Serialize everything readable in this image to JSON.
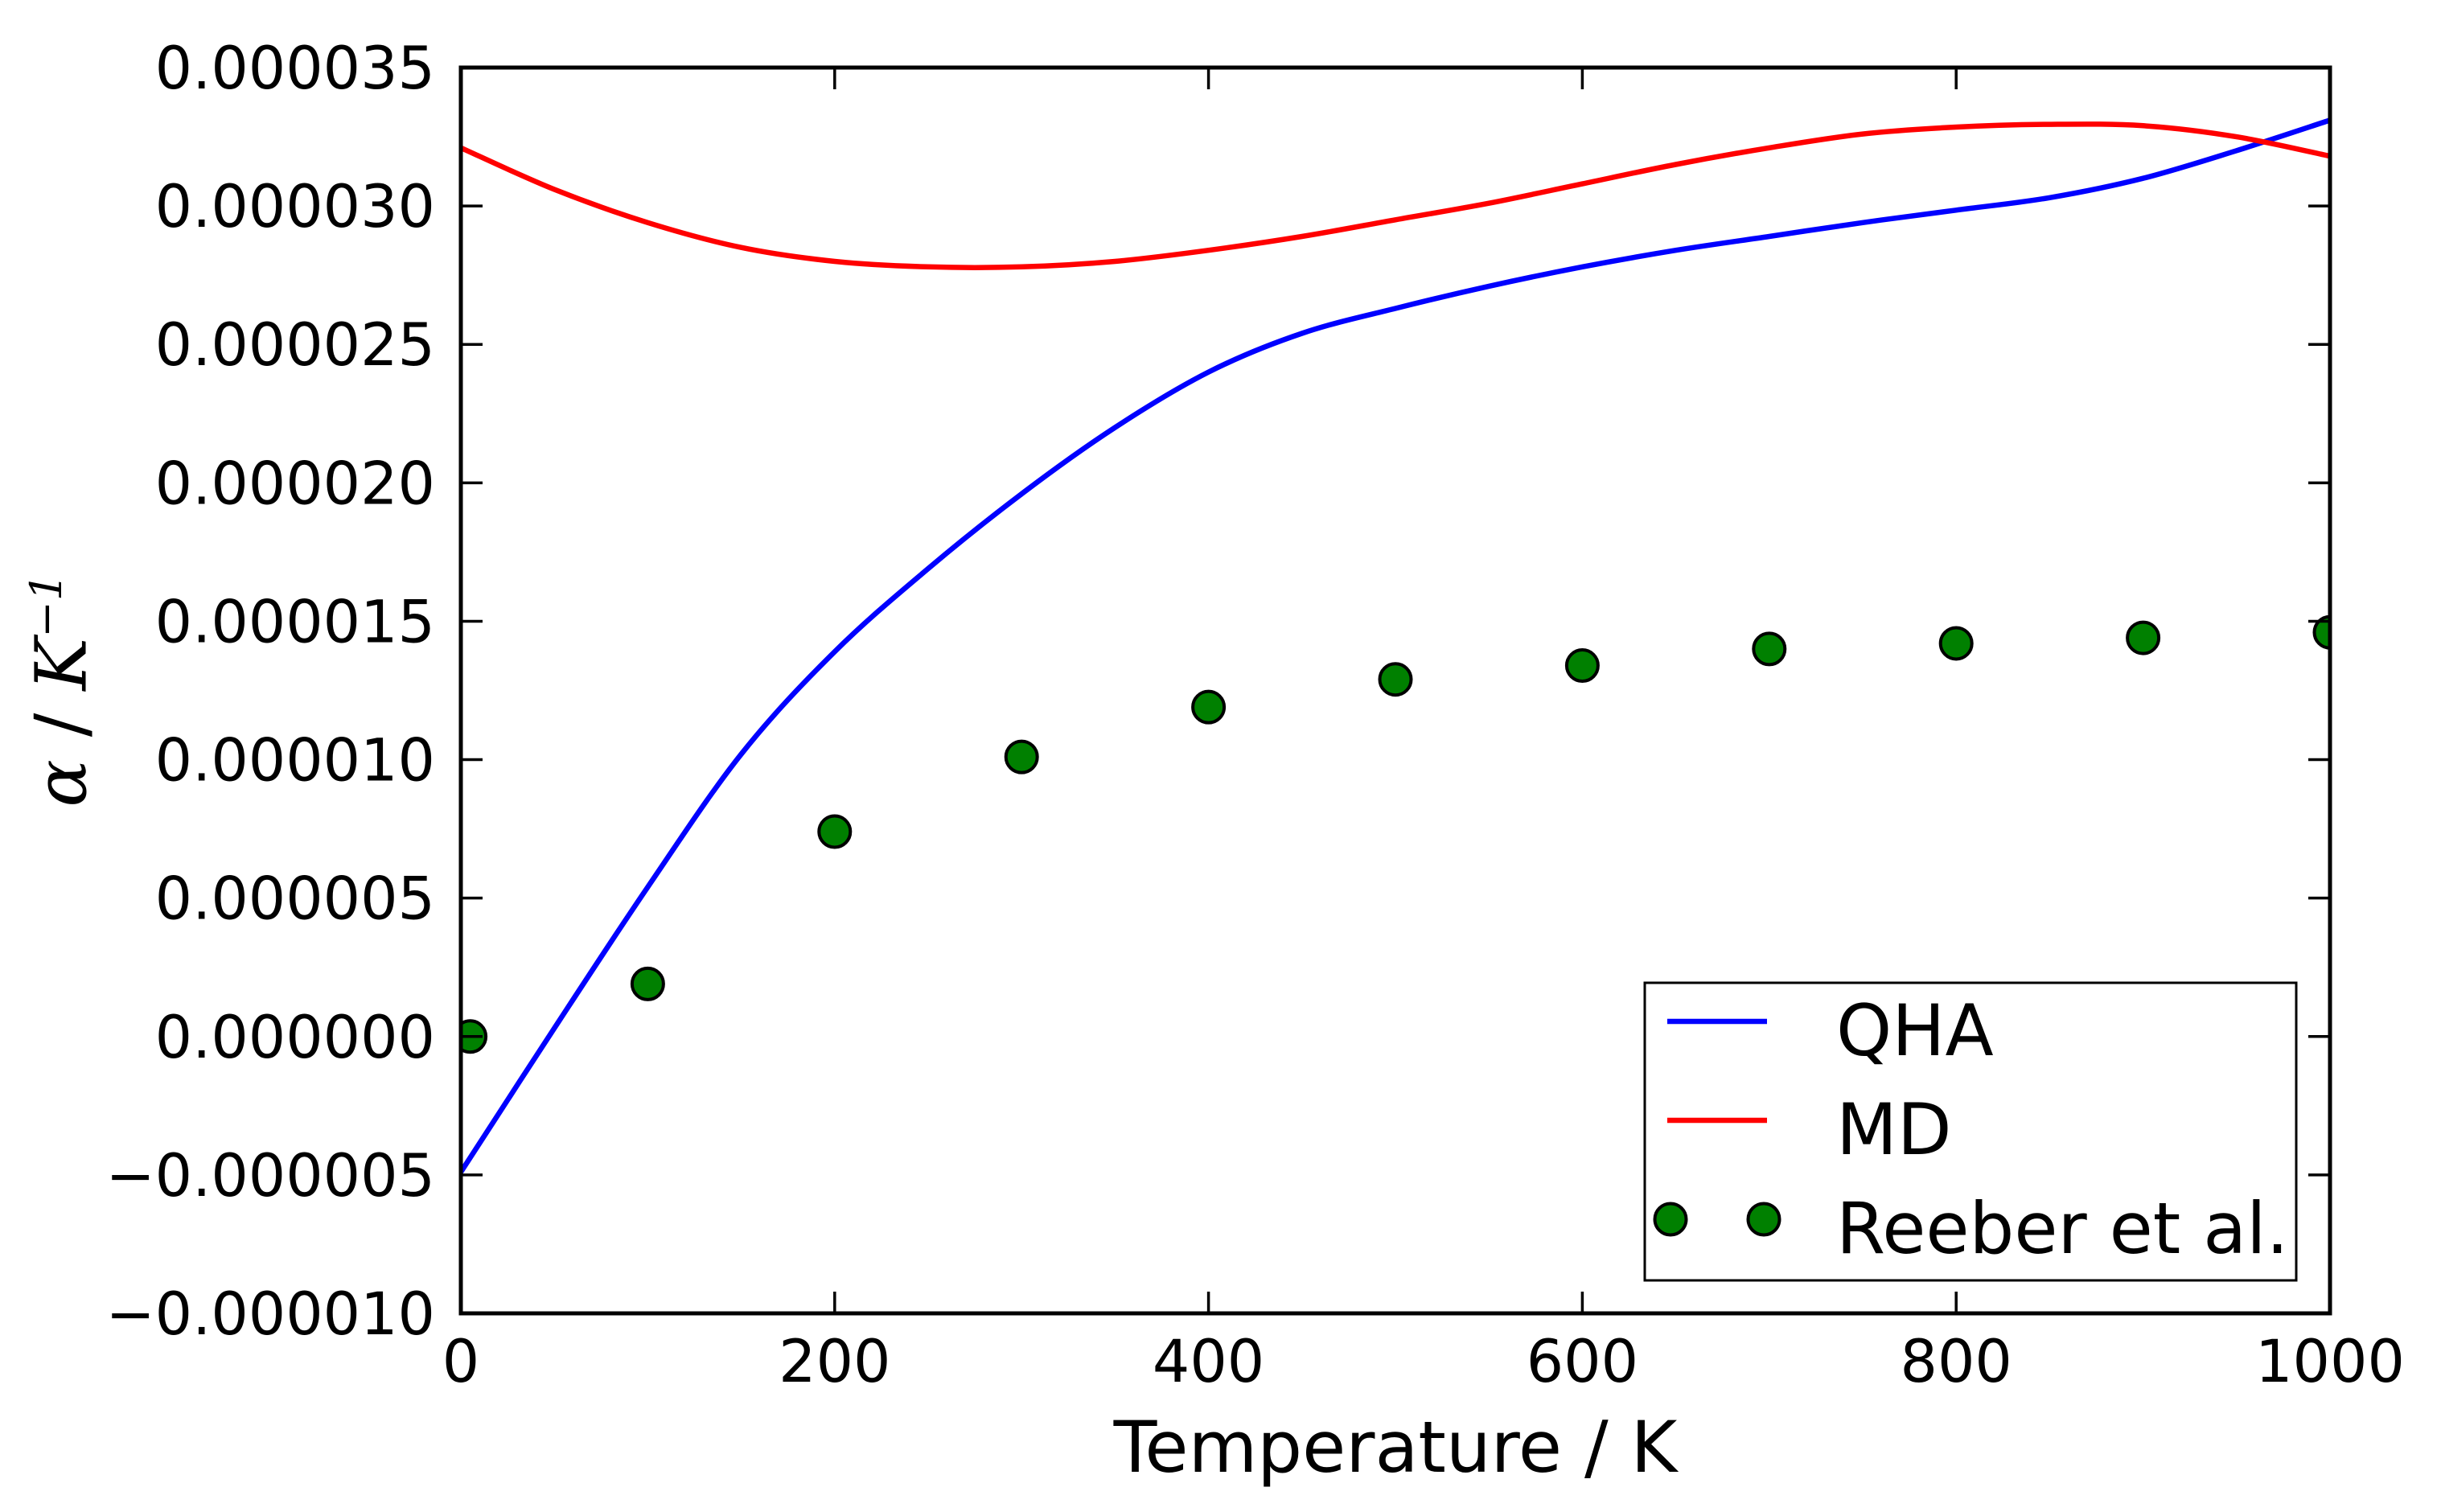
{
  "chart_data": {
    "type": "line",
    "title": "",
    "xlabel": "Temperature / K",
    "ylabel": "α / K⁻¹",
    "ylabel_parts": {
      "symbol": "α",
      "separator": " / ",
      "unit": "K",
      "exponent": "−1"
    },
    "xlim": [
      0,
      1000
    ],
    "ylim_micro": [
      -10,
      35
    ],
    "y_unit": "1e-6 per K",
    "grid": false,
    "legend_position": "lower right",
    "x_ticks": [
      {
        "value": 0,
        "label": "0"
      },
      {
        "value": 200,
        "label": "200"
      },
      {
        "value": 400,
        "label": "400"
      },
      {
        "value": 600,
        "label": "600"
      },
      {
        "value": 800,
        "label": "800"
      },
      {
        "value": 1000,
        "label": "1000"
      }
    ],
    "y_ticks": [
      {
        "micro": 35,
        "label": "0.000035"
      },
      {
        "micro": 30,
        "label": "0.000030"
      },
      {
        "micro": 25,
        "label": "0.000025"
      },
      {
        "micro": 20,
        "label": "0.000020"
      },
      {
        "micro": 15,
        "label": "0.000015"
      },
      {
        "micro": 10,
        "label": "0.000010"
      },
      {
        "micro": 5,
        "label": "0.000005"
      },
      {
        "micro": 0,
        "label": "0.000000"
      },
      {
        "micro": -5,
        "label": "−0.000005"
      },
      {
        "micro": -10,
        "label": "−0.000010"
      }
    ],
    "series": [
      {
        "name": "QHA",
        "type": "line",
        "color": "#0000ff",
        "x": [
          0,
          50,
          100,
          150,
          200,
          250,
          300,
          350,
          400,
          450,
          500,
          550,
          600,
          650,
          700,
          750,
          800,
          850,
          900,
          950,
          1000
        ],
        "y_micro": [
          -4.9,
          0.3,
          5.4,
          10.2,
          13.9,
          16.9,
          19.6,
          22.0,
          24.0,
          25.4,
          26.3,
          27.1,
          27.8,
          28.4,
          28.9,
          29.4,
          29.85,
          30.3,
          31.0,
          32.0,
          33.1
        ]
      },
      {
        "name": "MD",
        "type": "line",
        "color": "#ff0000",
        "x": [
          0,
          50,
          100,
          150,
          200,
          250,
          300,
          350,
          400,
          450,
          500,
          550,
          600,
          650,
          700,
          750,
          800,
          850,
          900,
          950,
          1000
        ],
        "y_micro": [
          32.1,
          30.6,
          29.4,
          28.5,
          28.0,
          27.8,
          27.8,
          28.0,
          28.4,
          28.9,
          29.5,
          30.1,
          30.8,
          31.5,
          32.1,
          32.6,
          32.85,
          32.95,
          32.9,
          32.5,
          31.8
        ]
      },
      {
        "name": "Reeber et al.",
        "type": "scatter",
        "color": "#008000",
        "edge_color": "#000000",
        "x": [
          5,
          100,
          200,
          300,
          400,
          500,
          600,
          700,
          800,
          900,
          1000
        ],
        "y_micro": [
          0.0,
          1.9,
          7.4,
          10.1,
          11.9,
          12.9,
          13.4,
          14.0,
          14.2,
          14.4,
          14.6
        ]
      }
    ],
    "legend": {
      "items": [
        {
          "label": "QHA",
          "marker": "line",
          "color": "#0000ff"
        },
        {
          "label": "MD",
          "marker": "line",
          "color": "#ff0000"
        },
        {
          "label": "Reeber et al.",
          "marker": "dots",
          "color": "#008000",
          "edge_color": "#000000"
        }
      ]
    }
  },
  "colors": {
    "background": "#ffffff",
    "axes": "#000000",
    "qha": "#0000ff",
    "md": "#ff0000",
    "reeber_fill": "#008000",
    "reeber_edge": "#000000"
  }
}
